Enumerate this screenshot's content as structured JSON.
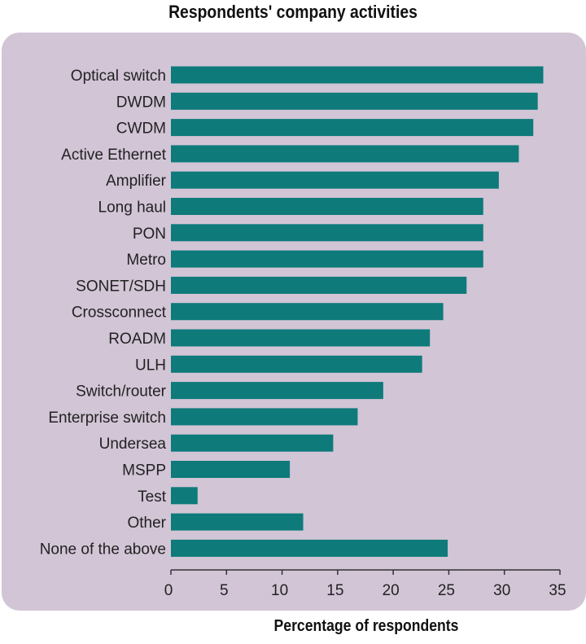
{
  "chart_data": {
    "type": "bar",
    "orientation": "horizontal",
    "title": "Respondents' company activities",
    "xlabel": "Percentage of respondents",
    "ylabel": "",
    "categories": [
      "Optical switch",
      "DWDM",
      "CWDM",
      "Active Ethernet",
      "Amplifier",
      "Long haul",
      "PON",
      "Metro",
      "SONET/SDH",
      "Crossconnect",
      "ROADM",
      "ULH",
      "Switch/router",
      "Enterprise switch",
      "Undersea",
      "MSPP",
      "Test",
      "Other",
      "None of the above"
    ],
    "values": [
      33.5,
      33.0,
      32.6,
      31.3,
      29.5,
      28.1,
      28.1,
      28.1,
      26.6,
      24.5,
      23.3,
      22.6,
      19.1,
      16.8,
      14.6,
      10.7,
      2.4,
      11.9,
      24.9
    ],
    "xlim": [
      0,
      35
    ],
    "xticks": [
      0,
      5,
      10,
      15,
      20,
      25,
      30,
      35
    ],
    "grid": false,
    "bar_color": "#0e7a7a",
    "panel_color": "#d2c5d6"
  }
}
